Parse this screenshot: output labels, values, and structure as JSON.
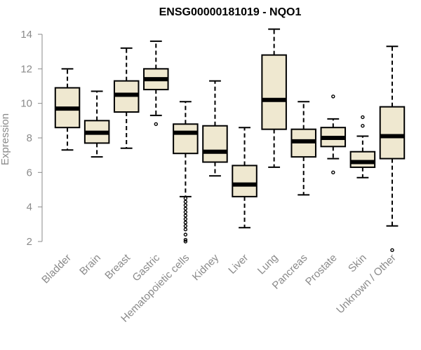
{
  "chart_data": {
    "type": "boxplot",
    "title": "ENSG00000181019 - NQO1",
    "xlabel": "",
    "ylabel": "Expression",
    "ylim": [
      1.2,
      14.6
    ],
    "yticks": [
      2,
      4,
      6,
      8,
      10,
      12,
      14
    ],
    "categories": [
      "Bladder",
      "Brain",
      "Breast",
      "Gastric",
      "Hematopoietic cells",
      "Kidney",
      "Liver",
      "Lung",
      "Pancreas",
      "Prostate",
      "Skin",
      "Unknown / Other"
    ],
    "boxes": [
      {
        "whisker_low": 7.3,
        "q1": 8.6,
        "median": 9.7,
        "q3": 10.9,
        "whisker_high": 12.0,
        "outliers": []
      },
      {
        "whisker_low": 6.9,
        "q1": 7.7,
        "median": 8.3,
        "q3": 9.0,
        "whisker_high": 10.7,
        "outliers": []
      },
      {
        "whisker_low": 7.4,
        "q1": 9.5,
        "median": 10.5,
        "q3": 11.3,
        "whisker_high": 13.2,
        "outliers": []
      },
      {
        "whisker_low": 9.3,
        "q1": 10.8,
        "median": 11.4,
        "q3": 12.0,
        "whisker_high": 13.6,
        "outliers": [
          8.8
        ]
      },
      {
        "whisker_low": 4.6,
        "q1": 7.1,
        "median": 8.3,
        "q3": 8.8,
        "whisker_high": 10.1,
        "outliers": [
          4.5,
          4.3,
          4.1,
          3.9,
          3.7,
          3.5,
          3.3,
          3.1,
          2.9,
          2.7,
          2.4,
          2.1,
          2.0
        ]
      },
      {
        "whisker_low": 5.8,
        "q1": 6.6,
        "median": 7.2,
        "q3": 8.7,
        "whisker_high": 11.3,
        "outliers": []
      },
      {
        "whisker_low": 2.8,
        "q1": 4.6,
        "median": 5.3,
        "q3": 6.4,
        "whisker_high": 8.6,
        "outliers": []
      },
      {
        "whisker_low": 6.3,
        "q1": 8.5,
        "median": 10.2,
        "q3": 12.8,
        "whisker_high": 14.3,
        "outliers": []
      },
      {
        "whisker_low": 4.7,
        "q1": 6.9,
        "median": 7.8,
        "q3": 8.5,
        "whisker_high": 10.1,
        "outliers": []
      },
      {
        "whisker_low": 6.8,
        "q1": 7.5,
        "median": 8.0,
        "q3": 8.6,
        "whisker_high": 9.1,
        "outliers": [
          10.4,
          6.0
        ]
      },
      {
        "whisker_low": 5.7,
        "q1": 6.3,
        "median": 6.6,
        "q3": 7.2,
        "whisker_high": 8.1,
        "outliers": [
          9.2,
          8.7
        ]
      },
      {
        "whisker_low": 2.9,
        "q1": 6.8,
        "median": 8.1,
        "q3": 9.8,
        "whisker_high": 13.3,
        "outliers": [
          1.5
        ]
      }
    ],
    "box_fill": "#efe8d0",
    "box_stroke": "#000000",
    "median_stroke": "#000000",
    "axis_color": "#8a8a8a",
    "grid": false,
    "legend": "none"
  }
}
